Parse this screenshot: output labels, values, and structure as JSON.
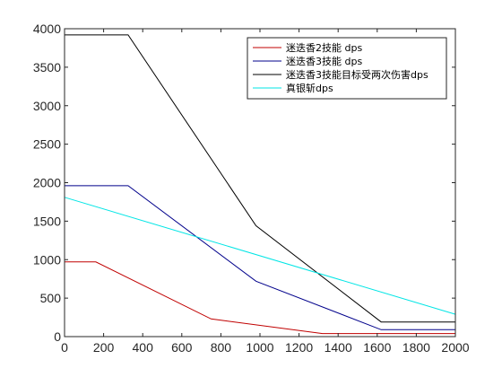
{
  "chart_data": {
    "type": "line",
    "title": "",
    "xlabel": "",
    "ylabel": "",
    "xlim": [
      0,
      2000
    ],
    "ylim": [
      0,
      4000
    ],
    "xticks": [
      0,
      200,
      400,
      600,
      800,
      1000,
      1200,
      1400,
      1600,
      1800,
      2000
    ],
    "yticks": [
      0,
      500,
      1000,
      1500,
      2000,
      2500,
      3000,
      3500,
      4000
    ],
    "grid": false,
    "legend_position": "top-right",
    "series": [
      {
        "name": "迷迭香2技能 dps",
        "color": "#c00000",
        "x": [
          0,
          160,
          750,
          1320,
          2000
        ],
        "y": [
          970,
          970,
          230,
          40,
          40
        ]
      },
      {
        "name": "迷迭香3技能 dps",
        "color": "#00008b",
        "x": [
          0,
          325,
          980,
          1620,
          2000
        ],
        "y": [
          1960,
          1960,
          720,
          90,
          90
        ]
      },
      {
        "name": "迷迭香3技能目标受两次伤害dps",
        "color": "#000000",
        "x": [
          0,
          325,
          980,
          1620,
          2000
        ],
        "y": [
          3920,
          3920,
          1440,
          190,
          190
        ]
      },
      {
        "name": "真银斩dps",
        "color": "#00e5e5",
        "x": [
          0,
          2000
        ],
        "y": [
          1810,
          290
        ]
      }
    ]
  }
}
